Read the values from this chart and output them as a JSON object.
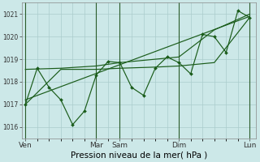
{
  "xlabel": "Pression niveau de la mer( hPa )",
  "bg_color": "#cce8e8",
  "grid_color": "#aacccc",
  "line_color": "#1a5c1a",
  "ylim": [
    1015.5,
    1021.5
  ],
  "yticks": [
    1016,
    1017,
    1018,
    1019,
    1020,
    1021
  ],
  "xtick_labels": [
    "Ven",
    "Mar",
    "Sam",
    "Dim",
    "Lun"
  ],
  "xtick_pos": [
    0,
    6,
    8,
    13,
    19
  ],
  "vline_pos": [
    0,
    6,
    8,
    13,
    19
  ],
  "main_x": [
    0,
    1,
    2,
    3,
    4,
    5,
    6,
    7,
    8,
    9,
    10,
    11,
    12,
    13,
    14,
    15,
    16,
    17,
    18,
    19
  ],
  "main_y": [
    1017.0,
    1018.6,
    1017.75,
    1017.2,
    1016.1,
    1016.7,
    1018.3,
    1018.9,
    1018.85,
    1017.75,
    1017.4,
    1018.6,
    1019.1,
    1018.85,
    1018.35,
    1020.1,
    1020.0,
    1019.3,
    1021.15,
    1020.85
  ],
  "upper_x": [
    0,
    3,
    6,
    8,
    11,
    13,
    16,
    19
  ],
  "upper_y": [
    1018.55,
    1018.6,
    1018.7,
    1018.85,
    1019.0,
    1019.1,
    1020.3,
    1021.0
  ],
  "lower_x": [
    0,
    3,
    6,
    8,
    11,
    13,
    16,
    19
  ],
  "lower_y": [
    1017.0,
    1018.55,
    1018.55,
    1018.6,
    1018.65,
    1018.7,
    1018.85,
    1020.85
  ],
  "trend_x": [
    0,
    19
  ],
  "trend_y": [
    1017.2,
    1020.9
  ],
  "ylabel_fontsize": 5.5,
  "xlabel_fontsize": 7.5,
  "ytick_fontsize": 5.5,
  "xtick_fontsize": 6.5
}
